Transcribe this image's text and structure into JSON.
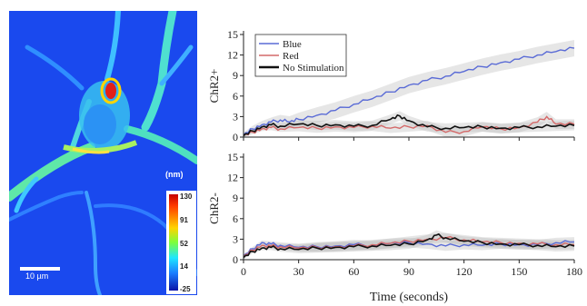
{
  "micrograph": {
    "unit_label": "(nm)",
    "scale_bar_label": "10 µm",
    "colorbar_ticks": [
      "130",
      "91",
      "52",
      "14",
      "-25"
    ]
  },
  "chart_data": [
    {
      "type": "line",
      "ylabel": "ChR2+",
      "xlim": [
        0,
        180
      ],
      "ylim": [
        0,
        15
      ],
      "xticks": [
        0,
        30,
        60,
        90,
        120,
        150,
        180
      ],
      "yticks": [
        0,
        3,
        6,
        9,
        12,
        15
      ],
      "legend_position": "top-left",
      "series": [
        {
          "name": "Blue",
          "color": "#5a6bd6",
          "x": [
            0,
            5,
            10,
            15,
            20,
            25,
            30,
            40,
            50,
            60,
            70,
            80,
            90,
            100,
            110,
            120,
            130,
            140,
            150,
            160,
            170,
            180
          ],
          "y": [
            0.3,
            1.2,
            1.8,
            2.2,
            2.5,
            2.2,
            2.6,
            3.2,
            3.9,
            4.8,
            5.6,
            6.6,
            7.6,
            8.3,
            8.9,
            9.6,
            10.3,
            10.9,
            11.4,
            12.0,
            12.5,
            13.0
          ]
        },
        {
          "name": "Red",
          "color": "#d46a6a",
          "x": [
            0,
            5,
            10,
            15,
            20,
            30,
            40,
            50,
            60,
            70,
            80,
            90,
            100,
            110,
            120,
            130,
            140,
            150,
            160,
            165,
            170,
            180
          ],
          "y": [
            0.2,
            0.7,
            1.2,
            1.4,
            1.2,
            1.4,
            1.3,
            1.5,
            1.4,
            1.6,
            1.3,
            1.5,
            1.7,
            0.7,
            0.8,
            1.5,
            1.2,
            1.4,
            2.2,
            3.0,
            1.9,
            1.9
          ]
        },
        {
          "name": "No Stimulation",
          "color": "#111111",
          "x": [
            0,
            5,
            10,
            15,
            20,
            30,
            40,
            50,
            60,
            70,
            80,
            85,
            90,
            100,
            110,
            120,
            130,
            140,
            150,
            160,
            170,
            180
          ],
          "y": [
            0.2,
            0.9,
            1.5,
            1.8,
            1.6,
            1.9,
            1.7,
            1.8,
            1.6,
            1.7,
            2.6,
            3.1,
            2.4,
            1.5,
            1.3,
            1.4,
            1.5,
            1.3,
            1.4,
            1.5,
            1.6,
            1.7
          ]
        }
      ]
    },
    {
      "type": "line",
      "ylabel": "ChR2-",
      "xlabel": "Time (seconds)",
      "xlim": [
        0,
        180
      ],
      "ylim": [
        0,
        15
      ],
      "xticks": [
        0,
        30,
        60,
        90,
        120,
        150,
        180
      ],
      "yticks": [
        0,
        3,
        6,
        9,
        12,
        15
      ],
      "series": [
        {
          "name": "Blue",
          "color": "#5a6bd6",
          "x": [
            0,
            5,
            10,
            15,
            20,
            30,
            40,
            50,
            60,
            70,
            80,
            90,
            100,
            110,
            120,
            130,
            140,
            150,
            160,
            170,
            180
          ],
          "y": [
            0.5,
            1.6,
            2.5,
            2.3,
            2.1,
            1.8,
            1.9,
            2.0,
            2.2,
            2.1,
            2.4,
            2.5,
            2.3,
            2.0,
            2.2,
            2.1,
            2.3,
            2.2,
            2.2,
            2.5,
            2.6
          ]
        },
        {
          "name": "Red",
          "color": "#d46a6a",
          "x": [
            0,
            5,
            10,
            15,
            20,
            30,
            40,
            50,
            60,
            70,
            80,
            90,
            100,
            110,
            120,
            130,
            140,
            150,
            160,
            170,
            180
          ],
          "y": [
            0.4,
            1.4,
            2.1,
            2.0,
            1.9,
            1.7,
            1.8,
            1.9,
            2.0,
            2.2,
            2.4,
            2.7,
            3.0,
            3.2,
            2.9,
            2.6,
            2.5,
            2.4,
            2.3,
            2.2,
            2.2
          ]
        },
        {
          "name": "No Stimulation",
          "color": "#111111",
          "x": [
            0,
            5,
            10,
            15,
            20,
            30,
            40,
            50,
            60,
            70,
            80,
            90,
            100,
            105,
            110,
            120,
            130,
            140,
            150,
            160,
            170,
            180
          ],
          "y": [
            0.3,
            1.2,
            1.7,
            1.8,
            1.6,
            1.5,
            1.7,
            1.8,
            1.9,
            2.0,
            2.1,
            2.3,
            2.9,
            3.6,
            3.2,
            2.7,
            2.5,
            2.3,
            2.2,
            2.1,
            1.9,
            2.0
          ]
        }
      ]
    }
  ]
}
